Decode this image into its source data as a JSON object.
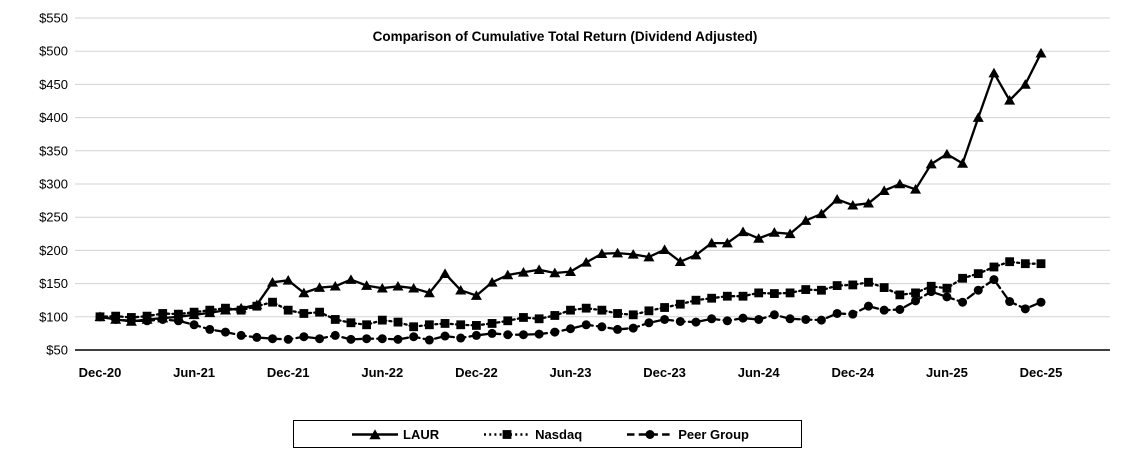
{
  "chart_data": {
    "type": "line",
    "title": "Comparison of Cumulative Total Return (Dividend Adjusted)",
    "background_color": "#ffffff",
    "line_color": "#000000",
    "grid": {
      "horizontal": true,
      "vertical": false,
      "color": "#d3d3d3"
    },
    "x_axis": {
      "frequency": "monthly",
      "start": "Dec-20",
      "end": "Dec-25",
      "points_per_tick": 6,
      "tick_labels": [
        "Dec-20",
        "Jun-21",
        "Dec-21",
        "Jun-22",
        "Dec-22",
        "Jun-23",
        "Dec-23",
        "Jun-24",
        "Dec-24",
        "Jun-25",
        "Dec-25"
      ]
    },
    "y_axis": {
      "min": 50,
      "max": 550,
      "step": 50,
      "format": "$",
      "tick_labels": [
        "$50",
        "$100",
        "$150",
        "$200",
        "$250",
        "$300",
        "$350",
        "$400",
        "$450",
        "$500",
        "$550"
      ]
    },
    "legend": {
      "position": "bottom",
      "border": true
    },
    "series": [
      {
        "name": "LAUR",
        "marker": "triangle",
        "line_style": "solid",
        "color": "#000000",
        "values": [
          100,
          96,
          93,
          96,
          98,
          100,
          103,
          106,
          110,
          113,
          118,
          152,
          155,
          136,
          144,
          146,
          156,
          147,
          143,
          146,
          143,
          136,
          165,
          140,
          132,
          152,
          163,
          167,
          171,
          166,
          168,
          182,
          195,
          196,
          194,
          190,
          201,
          183,
          193,
          211,
          211,
          228,
          218,
          227,
          225,
          245,
          255,
          277,
          268,
          271,
          290,
          300,
          292,
          330,
          345,
          331,
          400,
          467,
          426,
          450,
          497
        ]
      },
      {
        "name": "Nasdaq",
        "marker": "square",
        "line_style": "dotted",
        "color": "#000000",
        "values": [
          100,
          101,
          99,
          101,
          105,
          104,
          107,
          110,
          113,
          110,
          116,
          122,
          110,
          105,
          107,
          96,
          91,
          88,
          95,
          92,
          85,
          88,
          90,
          88,
          87,
          90,
          94,
          99,
          97,
          102,
          110,
          113,
          110,
          105,
          103,
          109,
          114,
          119,
          125,
          128,
          131,
          131,
          136,
          135,
          136,
          141,
          140,
          147,
          148,
          152,
          144,
          133,
          136,
          146,
          143,
          158,
          165,
          175,
          183,
          180,
          180
        ]
      },
      {
        "name": "Peer Group",
        "marker": "circle",
        "line_style": "dashed",
        "color": "#000000",
        "values": [
          100,
          96,
          94,
          94,
          96,
          94,
          88,
          81,
          77,
          72,
          69,
          67,
          66,
          70,
          67,
          72,
          66,
          67,
          67,
          66,
          70,
          65,
          71,
          68,
          72,
          75,
          73,
          73,
          74,
          77,
          82,
          88,
          85,
          81,
          83,
          91,
          96,
          93,
          92,
          97,
          94,
          98,
          96,
          103,
          97,
          96,
          95,
          105,
          104,
          116,
          110,
          111,
          124,
          138,
          130,
          122,
          140,
          156,
          123,
          112,
          122
        ]
      }
    ]
  }
}
